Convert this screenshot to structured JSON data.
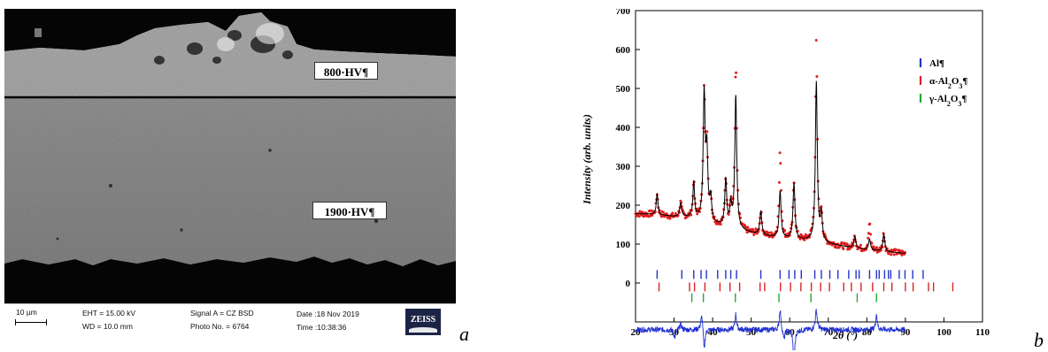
{
  "panel_a": {
    "hv_top": "800·HV¶",
    "hv_bottom": "1900·HV¶",
    "databar": {
      "scale": "10 µm",
      "eht": "EHT = 15.00 kV",
      "wd": "WD = 10.0 mm",
      "signal": "Signal A = CZ BSD",
      "photo": "Photo No. = 6764",
      "date": "Date :18 Nov 2019",
      "time": "Time :10:38:36",
      "brand": "ZEISS"
    },
    "label": "a"
  },
  "panel_b": {
    "label": "b"
  },
  "chart_data": {
    "type": "line",
    "xlabel": "2θ (°)",
    "ylabel": "Intensity (arb. units)",
    "xlim": [
      20,
      110
    ],
    "ylim": [
      -100,
      700
    ],
    "x_ticks": [
      20,
      30,
      40,
      50,
      60,
      70,
      80,
      90,
      100,
      110
    ],
    "y_ticks": [
      0,
      100,
      200,
      300,
      400,
      500,
      600,
      700
    ],
    "legend_position": "top-right",
    "legend": [
      {
        "name": "Al¶",
        "color": "#2233cc",
        "html": "Al¶"
      },
      {
        "name": "α-Al2O3¶",
        "color": "#dd2222",
        "html": "α-Al<tspan baseline-shift='sub' font-size='8'>2</tspan>O<tspan baseline-shift='sub' font-size='8'>3</tspan>¶"
      },
      {
        "name": "γ-Al2O3¶",
        "color": "#22aa33",
        "html": "γ-Al<tspan baseline-shift='sub' font-size='8'>2</tspan>O<tspan baseline-shift='sub' font-size='8'>3</tspan>¶"
      }
    ],
    "background": [
      [
        20,
        178
      ],
      [
        25,
        176
      ],
      [
        30,
        170
      ],
      [
        35,
        168
      ],
      [
        40,
        150
      ],
      [
        45,
        140
      ],
      [
        50,
        128
      ],
      [
        55,
        118
      ],
      [
        60,
        112
      ],
      [
        65,
        108
      ],
      [
        70,
        100
      ],
      [
        75,
        92
      ],
      [
        80,
        85
      ],
      [
        85,
        80
      ],
      [
        90,
        76
      ]
    ],
    "peaks": [
      {
        "x": 25.6,
        "h": 55,
        "w": 0.25
      },
      {
        "x": 31.7,
        "h": 35,
        "w": 0.3
      },
      {
        "x": 35.1,
        "h": 90,
        "w": 0.25
      },
      {
        "x": 37.8,
        "h": 320,
        "w": 0.3
      },
      {
        "x": 38.5,
        "h": 170,
        "w": 0.3
      },
      {
        "x": 39.5,
        "h": 60,
        "w": 0.3
      },
      {
        "x": 43.4,
        "h": 120,
        "w": 0.3
      },
      {
        "x": 44.7,
        "h": 55,
        "w": 0.3
      },
      {
        "x": 46.0,
        "h": 340,
        "w": 0.3
      },
      {
        "x": 52.5,
        "h": 60,
        "w": 0.3
      },
      {
        "x": 57.5,
        "h": 120,
        "w": 0.3
      },
      {
        "x": 61.1,
        "h": 145,
        "w": 0.3
      },
      {
        "x": 66.9,
        "h": 410,
        "w": 0.3
      },
      {
        "x": 68.2,
        "h": 70,
        "w": 0.3
      },
      {
        "x": 76.9,
        "h": 30,
        "w": 0.3
      },
      {
        "x": 80.7,
        "h": 28,
        "w": 0.3
      },
      {
        "x": 84.4,
        "h": 45,
        "w": 0.3
      }
    ],
    "obs_boost": [
      {
        "x": 46.0,
        "extra": 80
      },
      {
        "x": 57.5,
        "extra": 100
      },
      {
        "x": 66.9,
        "extra": 100
      },
      {
        "x": 38.5,
        "extra": 20
      },
      {
        "x": 80.7,
        "extra": 40
      }
    ],
    "diff_offset": -120,
    "diff_features": [
      {
        "x": 37.2,
        "a": 40,
        "w": 0.35
      },
      {
        "x": 37.8,
        "a": -60,
        "w": 0.25
      },
      {
        "x": 46.0,
        "a": 40,
        "w": 0.25
      },
      {
        "x": 57.5,
        "a": 55,
        "w": 0.25
      },
      {
        "x": 61.1,
        "a": -90,
        "w": 0.25
      },
      {
        "x": 66.9,
        "a": 50,
        "w": 0.3
      },
      {
        "x": 82.5,
        "a": 40,
        "w": 0.25
      },
      {
        "x": 30.2,
        "a": -20,
        "w": 0.3
      },
      {
        "x": 31.7,
        "a": 15,
        "w": 0.3
      },
      {
        "x": 58.5,
        "a": -25,
        "w": 0.3
      }
    ],
    "ticks_al": {
      "y": 22,
      "x": [
        25.6,
        32.0,
        35.1,
        37.0,
        38.4,
        41.3,
        43.4,
        44.7,
        46.2,
        52.5,
        57.5,
        59.8,
        61.3,
        63.0,
        66.5,
        68.2,
        70.4,
        72.5,
        75.3,
        77.2,
        78.0,
        80.7,
        82.5,
        83.2,
        84.6,
        85.6,
        86.2,
        88.4,
        89.9,
        91.9,
        94.6
      ]
    },
    "ticks_a": {
      "y": -10,
      "x": [
        26.1,
        34.0,
        35.3,
        38.0,
        41.9,
        44.5,
        47.0,
        52.3,
        53.5,
        57.6,
        60.2,
        62.9,
        65.6,
        68.0,
        70.3,
        74.0,
        76.0,
        78.5,
        81.5,
        84.4,
        86.5,
        90.0,
        92.0,
        96.0,
        97.3,
        102.3
      ]
    },
    "ticks_g": {
      "y": -38,
      "x": [
        34.6,
        37.6,
        45.9,
        57.2,
        65.5,
        77.5,
        82.5
      ]
    }
  }
}
